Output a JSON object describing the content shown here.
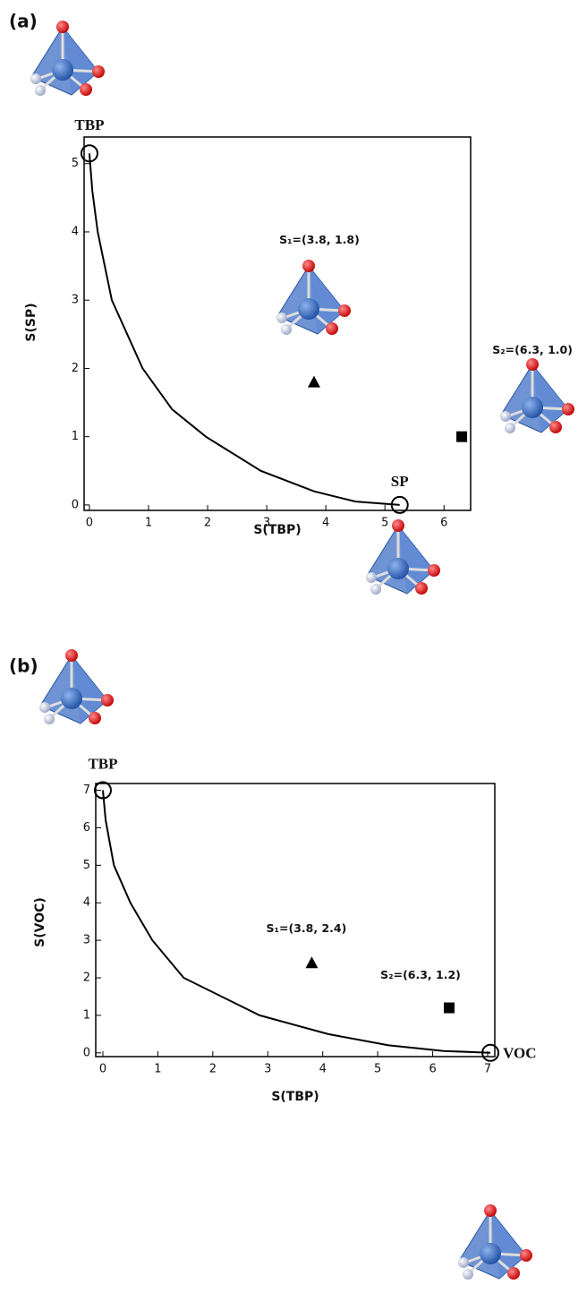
{
  "chart_data": [
    {
      "type": "scatter",
      "panel": "(a)",
      "xlabel": "S(TBP)",
      "ylabel": "S(SP)",
      "xlim": [
        -0.09,
        6.45
      ],
      "ylim": [
        -0.08,
        5.39
      ],
      "xticks": [
        0,
        1,
        2,
        3,
        4,
        5,
        6
      ],
      "yticks": [
        0,
        1,
        2,
        3,
        4,
        5
      ],
      "curve": {
        "x": [
          0,
          0.05,
          0.14,
          0.38,
          0.9,
          1.4,
          1.97,
          2.9,
          3.8,
          4.5,
          5.25
        ],
        "y": [
          5.15,
          4.6,
          4.0,
          3.0,
          2.0,
          1.4,
          1.0,
          0.5,
          0.2,
          0.05,
          0
        ]
      },
      "points": [
        {
          "label": "TBP",
          "x": 0,
          "y": 5.15,
          "marker": "circle"
        },
        {
          "label": "SP",
          "x": 5.25,
          "y": 0,
          "marker": "circle"
        },
        {
          "label": "S₁=(3.8, 1.8)",
          "x": 3.8,
          "y": 1.8,
          "marker": "triangle"
        },
        {
          "label": "S₂=(6.3, 1.0)",
          "x": 6.3,
          "y": 1.0,
          "marker": "square"
        }
      ]
    },
    {
      "type": "scatter",
      "panel": "(b)",
      "xlabel": "S(TBP)",
      "ylabel": "S(VOC)",
      "xlim": [
        -0.13,
        7.13
      ],
      "ylim": [
        -0.1,
        7.18
      ],
      "xticks": [
        0,
        1,
        2,
        3,
        4,
        5,
        6,
        7
      ],
      "yticks": [
        0,
        1,
        2,
        3,
        4,
        5,
        6,
        7
      ],
      "curve": {
        "x": [
          0,
          0.05,
          0.2,
          0.5,
          0.9,
          1.47,
          2.85,
          4.1,
          5.2,
          6.2,
          7.05
        ],
        "y": [
          7,
          6.2,
          5,
          4,
          3,
          2,
          1,
          0.5,
          0.2,
          0.05,
          0
        ]
      },
      "points": [
        {
          "label": "TBP",
          "x": 0,
          "y": 7,
          "marker": "circle"
        },
        {
          "label": "VOC",
          "x": 7.05,
          "y": 0,
          "marker": "circle"
        },
        {
          "label": "S₁=(3.8, 2.4)",
          "x": 3.8,
          "y": 2.4,
          "marker": "triangle"
        },
        {
          "label": "S₂=(6.3, 1.2)",
          "x": 6.3,
          "y": 1.2,
          "marker": "square"
        }
      ]
    }
  ]
}
